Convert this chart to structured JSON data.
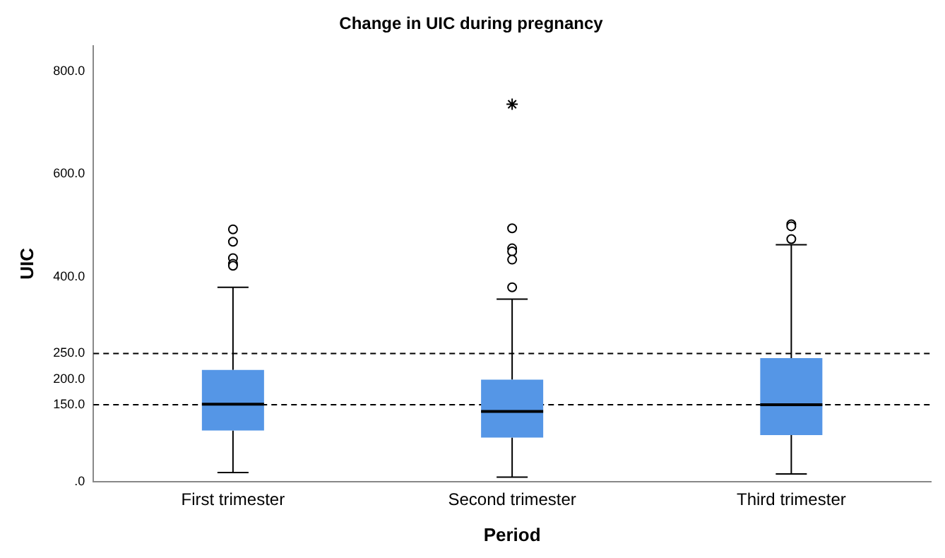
{
  "chart_data": {
    "type": "box",
    "title": "Change in UIC during pregnancy",
    "xlabel": "Period",
    "ylabel": "UIC",
    "categories": [
      "First trimester",
      "Second trimester",
      "Third trimester"
    ],
    "color": "#5596e6",
    "boxes": [
      {
        "low": 18,
        "q1": 100,
        "median": 151,
        "q3": 218,
        "high": 379,
        "outliers": [
          492,
          468,
          436,
          425,
          421
        ]
      },
      {
        "low": 9,
        "q1": 86,
        "median": 137,
        "q3": 199,
        "high": 356,
        "outliers": [
          494,
          455,
          449,
          433,
          379
        ]
      },
      {
        "low": 15,
        "q1": 91,
        "median": 150,
        "q3": 241,
        "high": 462,
        "outliers": [
          502,
          498,
          473
        ]
      }
    ],
    "series": [
      {
        "type": "scatter",
        "marker": "cross",
        "color": "#000000",
        "x": [
          "Second trimester"
        ],
        "values": [
          736
        ]
      }
    ],
    "ylim": [
      0,
      850
    ],
    "yticks": [
      {
        "value": 0,
        "label": ".0"
      },
      {
        "value": 150,
        "label": "150.0"
      },
      {
        "value": 200,
        "label": "200.0"
      },
      {
        "value": 250,
        "label": "250.0"
      },
      {
        "value": 400,
        "label": "400.0"
      },
      {
        "value": 600,
        "label": "600.0"
      },
      {
        "value": 800,
        "label": "800.0"
      }
    ],
    "ref_lines": [
      {
        "axis": "y",
        "value": 150,
        "line_style": "dashed"
      },
      {
        "axis": "y",
        "value": 250,
        "line_style": "dashed"
      }
    ],
    "grid": false,
    "legend": false,
    "marker": "circle"
  }
}
